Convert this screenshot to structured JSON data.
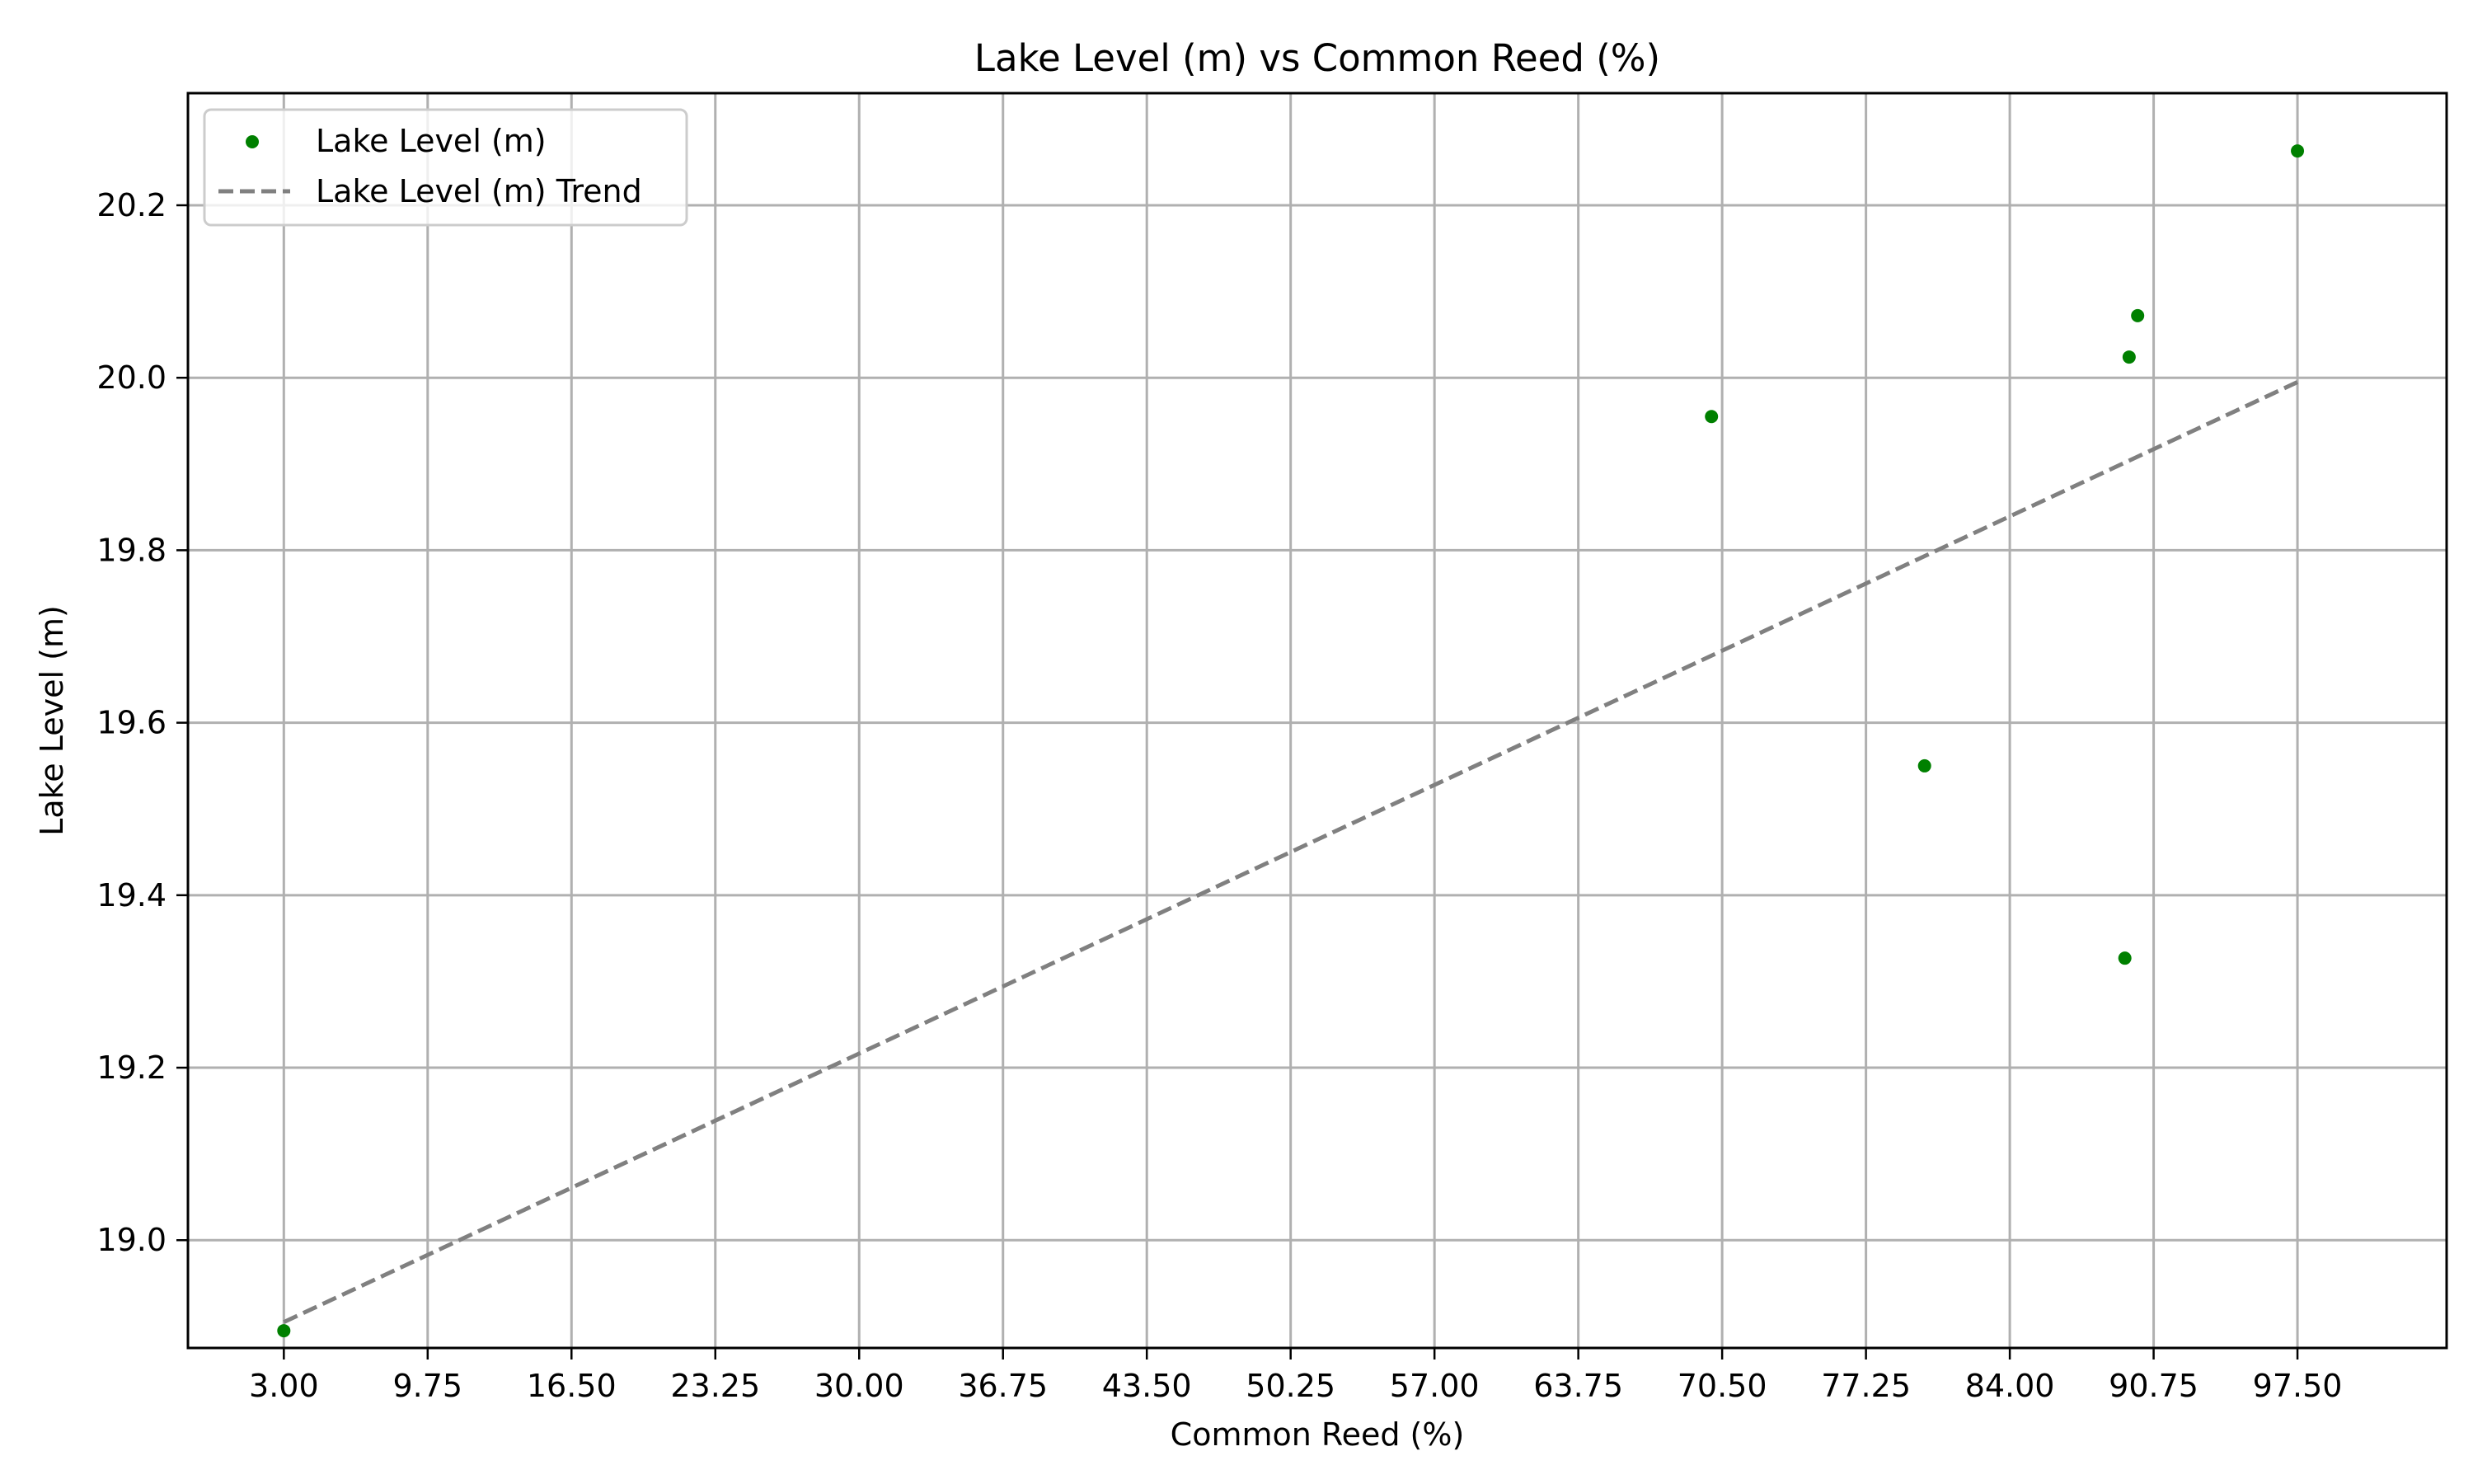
{
  "chart_data": {
    "type": "scatter",
    "title": "Lake Level (m) vs Common Reed (%)",
    "xlabel": "Common Reed (%)",
    "ylabel": "Lake Level (m)",
    "xlim": [
      -1.5,
      104.5
    ],
    "ylim": [
      18.875,
      20.33
    ],
    "xticks": [
      3.0,
      9.75,
      16.5,
      23.25,
      30.0,
      36.75,
      43.5,
      50.25,
      57.0,
      63.75,
      70.5,
      77.25,
      84.0,
      90.75,
      97.5
    ],
    "xtick_labels": [
      "3.00",
      "9.75",
      "16.50",
      "23.25",
      "30.00",
      "36.75",
      "43.50",
      "50.25",
      "57.00",
      "63.75",
      "70.50",
      "77.25",
      "84.00",
      "90.75",
      "97.50"
    ],
    "yticks": [
      19.0,
      19.2,
      19.4,
      19.6,
      19.8,
      20.0,
      20.2
    ],
    "ytick_labels": [
      "19.0",
      "19.2",
      "19.4",
      "19.6",
      "19.8",
      "20.0",
      "20.2"
    ],
    "grid": true,
    "legend_position": "top-left",
    "series": [
      {
        "name": "Lake Level (m)",
        "color": "#008000",
        "marker": "circle",
        "points": [
          {
            "x": 3.0,
            "y": 18.895
          },
          {
            "x": 70.0,
            "y": 19.955
          },
          {
            "x": 80.0,
            "y": 19.55
          },
          {
            "x": 89.4,
            "y": 19.327
          },
          {
            "x": 89.6,
            "y": 20.024
          },
          {
            "x": 90.0,
            "y": 20.072
          },
          {
            "x": 97.5,
            "y": 20.263
          }
        ]
      },
      {
        "name": "Lake Level (m) Trend",
        "color": "#808080",
        "style": "dashed",
        "line": [
          {
            "x": 3.0,
            "y": 18.905
          },
          {
            "x": 97.5,
            "y": 19.995
          }
        ]
      }
    ]
  }
}
